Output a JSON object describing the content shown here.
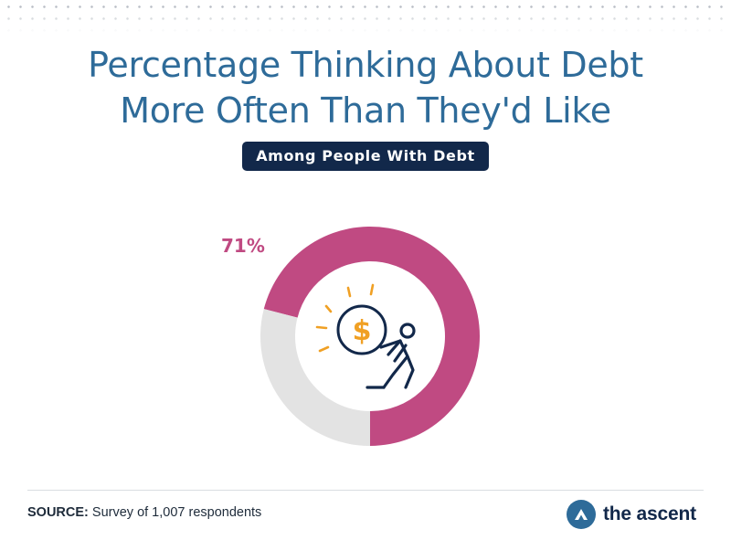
{
  "header": {
    "title_line1": "Percentage Thinking About Debt",
    "title_line2": "More Often Than They'd Like",
    "subtitle": "Among People With Debt"
  },
  "chart_data": {
    "type": "pie",
    "donut": true,
    "title": "Percentage Thinking About Debt More Often Than They'd Like",
    "subtitle": "Among People With Debt",
    "slices": [
      {
        "label": "",
        "value": 71,
        "display": "71%",
        "color": "#c04a82"
      },
      {
        "label": "",
        "value": 29,
        "display": "",
        "color": "#e3e3e3"
      }
    ],
    "center_icon": "person-pushing-dollar-coin-icon"
  },
  "footer": {
    "source_label": "SOURCE:",
    "source_text": "Survey of 1,007 respondents",
    "brand_name": "the ascent",
    "brand_logo_icon": "the-ascent-logo-icon"
  },
  "colors": {
    "title": "#2e6b99",
    "pill_bg": "#12284a",
    "accent": "#c04a82",
    "remainder": "#e3e3e3",
    "icon_orange": "#f0a024",
    "icon_navy": "#12284a"
  }
}
